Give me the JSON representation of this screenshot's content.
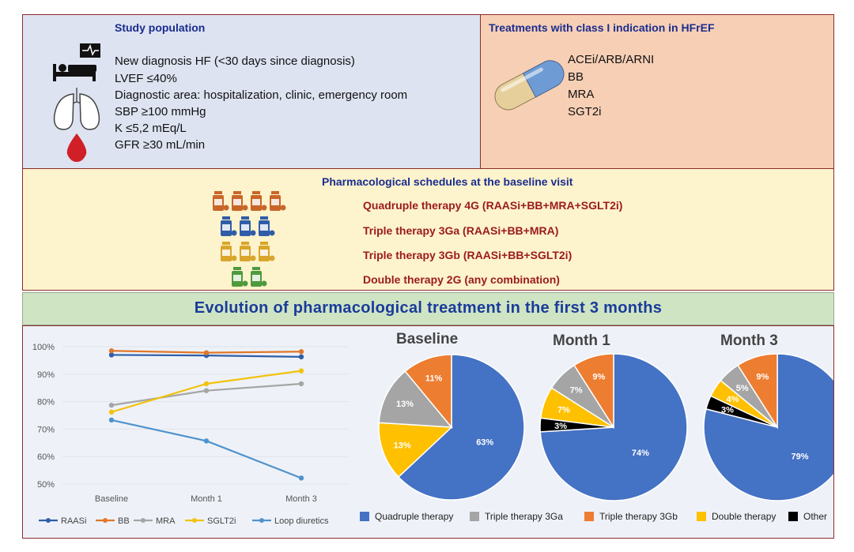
{
  "study": {
    "title": "Study population",
    "items": [
      "New diagnosis HF (<30 days since diagnosis)",
      "LVEF ≤40%",
      "Diagnostic area: hospitalization, clinic, emergency room",
      "SBP ≥100 mmHg",
      "K ≤5,2 mEq/L",
      "GFR ≥30 mL/min"
    ]
  },
  "treatments": {
    "title": "Treatments with class I indication in HFrEF",
    "items": [
      "ACEi/ARB/ARNI",
      "BB",
      "MRA",
      "SGT2i"
    ]
  },
  "schedules": {
    "title": "Pharmacological schedules at the baseline visit",
    "items": [
      "Quadruple therapy 4G (RAASi+BB+MRA+SGLT2i)",
      "Triple therapy 3Ga  (RAASi+BB+MRA)",
      "Triple therapy 3Gb (RAASi+BB+SGLT2i)",
      "Double therapy 2G (any combination)"
    ],
    "bottle_colors": [
      "#c8662a",
      "#2f5da8",
      "#d9a52a",
      "#4e9a3e"
    ],
    "bottle_counts": [
      4,
      3,
      3,
      2
    ]
  },
  "evolution_title": "Evolution of pharmacological  treatment in the first 3 months",
  "chart_data": [
    {
      "type": "line",
      "x": [
        "Baseline",
        "Month 1",
        "Month 3"
      ],
      "ylim": [
        50,
        100
      ],
      "yticks": [
        "50%",
        "60%",
        "70%",
        "80%",
        "90%",
        "100%"
      ],
      "series": [
        {
          "name": "RAASi",
          "color": "#2f5ea8",
          "values": [
            97,
            96.8,
            96.3
          ]
        },
        {
          "name": "BB",
          "color": "#e0772a",
          "values": [
            98.5,
            97.8,
            98.2
          ]
        },
        {
          "name": "MRA",
          "color": "#a5a5a5",
          "values": [
            78.7,
            84,
            86.5
          ]
        },
        {
          "name": "SGLT2i",
          "color": "#f2c20f",
          "values": [
            76.2,
            86.5,
            91.2
          ]
        },
        {
          "name": "Loop diuretics",
          "color": "#4f93cc",
          "values": [
            73.3,
            65.7,
            52.2
          ]
        }
      ]
    },
    {
      "type": "pie",
      "title": "Baseline",
      "slices": [
        {
          "key": "quadruple",
          "value": 63,
          "label": "63%"
        },
        {
          "key": "double",
          "value": 13,
          "label": "13%"
        },
        {
          "key": "triple_a",
          "value": 13,
          "label": "13%"
        },
        {
          "key": "triple_b",
          "value": 11,
          "label": "11%"
        }
      ]
    },
    {
      "type": "pie",
      "title": "Month  1",
      "slices": [
        {
          "key": "quadruple",
          "value": 74,
          "label": "74%"
        },
        {
          "key": "other",
          "value": 3,
          "label": "3%"
        },
        {
          "key": "double",
          "value": 7,
          "label": "7%"
        },
        {
          "key": "triple_a",
          "value": 7,
          "label": "7%"
        },
        {
          "key": "triple_b",
          "value": 9,
          "label": "9%"
        }
      ]
    },
    {
      "type": "pie",
      "title": "Month 3",
      "slices": [
        {
          "key": "quadruple",
          "value": 79,
          "label": "79%"
        },
        {
          "key": "other",
          "value": 3,
          "label": "3%"
        },
        {
          "key": "double",
          "value": 4,
          "label": "4%"
        },
        {
          "key": "triple_a",
          "value": 5,
          "label": "5%"
        },
        {
          "key": "triple_b",
          "value": 9,
          "label": "9%"
        }
      ]
    }
  ],
  "pie_legend": [
    {
      "key": "quadruple",
      "label": "Quadruple therapy",
      "color": "#4472c4"
    },
    {
      "key": "triple_a",
      "label": "Triple therapy 3Ga",
      "color": "#a5a5a5"
    },
    {
      "key": "triple_b",
      "label": "Triple therapy 3Gb",
      "color": "#ed7d31"
    },
    {
      "key": "double",
      "label": "Double therapy",
      "color": "#ffc000"
    },
    {
      "key": "other",
      "label": "Other",
      "color": "#000000"
    }
  ]
}
